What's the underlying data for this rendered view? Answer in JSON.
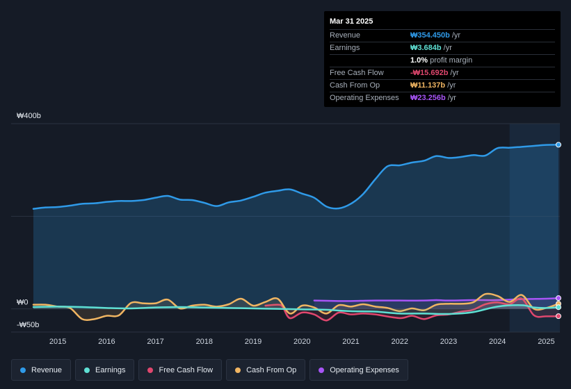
{
  "tooltip": {
    "date": "Mar 31 2025",
    "rows": [
      {
        "label": "Revenue",
        "value": "₩354.450b",
        "unit": "/yr",
        "color": "#2f9ae8"
      },
      {
        "label": "Earnings",
        "value": "₩3.684b",
        "unit": "/yr",
        "color": "#5fe0d4"
      },
      {
        "label": "",
        "value": "1.0%",
        "unit": "profit margin",
        "color": "#ffffff"
      },
      {
        "label": "Free Cash Flow",
        "value": "-₩15.692b",
        "unit": "/yr",
        "color": "#e0476e"
      },
      {
        "label": "Cash From Op",
        "value": "₩11.137b",
        "unit": "/yr",
        "color": "#f0b562"
      },
      {
        "label": "Operating Expenses",
        "value": "₩23.256b",
        "unit": "/yr",
        "color": "#a855f7"
      }
    ]
  },
  "legend": [
    {
      "label": "Revenue",
      "color": "#2f9ae8"
    },
    {
      "label": "Earnings",
      "color": "#5fe0d4"
    },
    {
      "label": "Free Cash Flow",
      "color": "#e0476e"
    },
    {
      "label": "Cash From Op",
      "color": "#f0b562"
    },
    {
      "label": "Operating Expenses",
      "color": "#a855f7"
    }
  ],
  "chart_data": {
    "type": "line",
    "y_unit": "₩ billions",
    "ylim": [
      -50,
      400
    ],
    "y_tick_labels": [
      {
        "value": 400,
        "label": "₩400b"
      },
      {
        "value": 0,
        "label": "₩0"
      },
      {
        "value": -50,
        "label": "-₩50b"
      }
    ],
    "xlim": [
      2014.5,
      2025.25
    ],
    "x_ticks": [
      "2015",
      "2016",
      "2017",
      "2018",
      "2019",
      "2020",
      "2021",
      "2022",
      "2023",
      "2024",
      "2025"
    ],
    "grid": true,
    "highlight_from": 2024.25,
    "series": [
      {
        "name": "Revenue",
        "color": "#2f9ae8",
        "fill": true,
        "points": [
          [
            2014.5,
            216
          ],
          [
            2014.75,
            219
          ],
          [
            2015.0,
            220
          ],
          [
            2015.25,
            223
          ],
          [
            2015.5,
            227
          ],
          [
            2015.75,
            228
          ],
          [
            2016.0,
            231
          ],
          [
            2016.25,
            233
          ],
          [
            2016.5,
            233
          ],
          [
            2016.75,
            235
          ],
          [
            2017.0,
            240
          ],
          [
            2017.25,
            244
          ],
          [
            2017.5,
            236
          ],
          [
            2017.75,
            235
          ],
          [
            2018.0,
            229
          ],
          [
            2018.25,
            222
          ],
          [
            2018.5,
            230
          ],
          [
            2018.75,
            234
          ],
          [
            2019.0,
            242
          ],
          [
            2019.25,
            251
          ],
          [
            2019.5,
            255
          ],
          [
            2019.75,
            258
          ],
          [
            2020.0,
            249
          ],
          [
            2020.25,
            240
          ],
          [
            2020.5,
            221
          ],
          [
            2020.75,
            217
          ],
          [
            2021.0,
            227
          ],
          [
            2021.25,
            248
          ],
          [
            2021.5,
            280
          ],
          [
            2021.75,
            308
          ],
          [
            2022.0,
            310
          ],
          [
            2022.25,
            316
          ],
          [
            2022.5,
            320
          ],
          [
            2022.75,
            330
          ],
          [
            2023.0,
            326
          ],
          [
            2023.25,
            328
          ],
          [
            2023.5,
            332
          ],
          [
            2023.75,
            331
          ],
          [
            2024.0,
            347
          ],
          [
            2024.25,
            348
          ],
          [
            2024.5,
            350
          ],
          [
            2024.75,
            352
          ],
          [
            2025.0,
            354
          ],
          [
            2025.25,
            354.45
          ]
        ]
      },
      {
        "name": "Earnings",
        "color": "#5fe0d4",
        "points": [
          [
            2014.5,
            4
          ],
          [
            2015.0,
            5
          ],
          [
            2015.5,
            4
          ],
          [
            2016.0,
            2
          ],
          [
            2016.5,
            1
          ],
          [
            2017.0,
            3
          ],
          [
            2017.5,
            4
          ],
          [
            2018.0,
            3
          ],
          [
            2018.5,
            2
          ],
          [
            2019.0,
            1
          ],
          [
            2019.5,
            0
          ],
          [
            2020.0,
            -1
          ],
          [
            2020.5,
            -2
          ],
          [
            2021.0,
            -5
          ],
          [
            2021.5,
            -6
          ],
          [
            2022.0,
            -10
          ],
          [
            2022.5,
            -10
          ],
          [
            2023.0,
            -11
          ],
          [
            2023.5,
            -7
          ],
          [
            2024.0,
            5
          ],
          [
            2024.5,
            8
          ],
          [
            2024.75,
            3
          ],
          [
            2025.0,
            2
          ],
          [
            2025.25,
            3.684
          ]
        ]
      },
      {
        "name": "Free Cash Flow",
        "color": "#e0476e",
        "start": 2019.25,
        "points": [
          [
            2019.25,
            7
          ],
          [
            2019.5,
            9
          ],
          [
            2019.6,
            5
          ],
          [
            2019.75,
            -20
          ],
          [
            2020.0,
            -8
          ],
          [
            2020.25,
            -12
          ],
          [
            2020.5,
            -25
          ],
          [
            2020.75,
            -8
          ],
          [
            2021.0,
            -12
          ],
          [
            2021.25,
            -10
          ],
          [
            2021.5,
            -12
          ],
          [
            2022.0,
            -20
          ],
          [
            2022.25,
            -15
          ],
          [
            2022.5,
            -22
          ],
          [
            2022.75,
            -14
          ],
          [
            2023.0,
            -12
          ],
          [
            2023.25,
            -6
          ],
          [
            2023.5,
            -2
          ],
          [
            2023.75,
            10
          ],
          [
            2024.0,
            14
          ],
          [
            2024.25,
            10
          ],
          [
            2024.5,
            22
          ],
          [
            2024.75,
            -14
          ],
          [
            2025.0,
            -16
          ],
          [
            2025.25,
            -15.692
          ]
        ]
      },
      {
        "name": "Cash From Op",
        "color": "#f0b562",
        "points": [
          [
            2014.5,
            9
          ],
          [
            2014.75,
            9
          ],
          [
            2015.0,
            5
          ],
          [
            2015.25,
            2
          ],
          [
            2015.5,
            -22
          ],
          [
            2015.75,
            -22
          ],
          [
            2016.0,
            -15
          ],
          [
            2016.25,
            -14
          ],
          [
            2016.5,
            13
          ],
          [
            2016.75,
            12
          ],
          [
            2017.0,
            12
          ],
          [
            2017.25,
            20
          ],
          [
            2017.5,
            1
          ],
          [
            2017.75,
            7
          ],
          [
            2018.0,
            9
          ],
          [
            2018.25,
            5
          ],
          [
            2018.5,
            10
          ],
          [
            2018.75,
            22
          ],
          [
            2019.0,
            7
          ],
          [
            2019.25,
            15
          ],
          [
            2019.5,
            22
          ],
          [
            2019.75,
            -10
          ],
          [
            2020.0,
            7
          ],
          [
            2020.25,
            3
          ],
          [
            2020.5,
            -10
          ],
          [
            2020.75,
            8
          ],
          [
            2021.0,
            5
          ],
          [
            2021.25,
            10
          ],
          [
            2021.5,
            5
          ],
          [
            2021.75,
            2
          ],
          [
            2022.0,
            -5
          ],
          [
            2022.25,
            1
          ],
          [
            2022.5,
            -3
          ],
          [
            2022.75,
            9
          ],
          [
            2023.0,
            11
          ],
          [
            2023.25,
            11
          ],
          [
            2023.5,
            14
          ],
          [
            2023.75,
            32
          ],
          [
            2024.0,
            28
          ],
          [
            2024.25,
            15
          ],
          [
            2024.5,
            30
          ],
          [
            2024.75,
            0
          ],
          [
            2025.0,
            2
          ],
          [
            2025.25,
            11.137
          ]
        ]
      },
      {
        "name": "Operating Expenses",
        "color": "#a855f7",
        "start": 2020.25,
        "points": [
          [
            2020.25,
            18
          ],
          [
            2020.75,
            17
          ],
          [
            2021.0,
            17
          ],
          [
            2021.5,
            18
          ],
          [
            2022.0,
            18
          ],
          [
            2022.5,
            18
          ],
          [
            2022.75,
            19
          ],
          [
            2023.0,
            18
          ],
          [
            2023.5,
            19
          ],
          [
            2024.0,
            19
          ],
          [
            2024.5,
            21
          ],
          [
            2025.0,
            22
          ],
          [
            2025.25,
            23.256
          ]
        ]
      }
    ]
  }
}
